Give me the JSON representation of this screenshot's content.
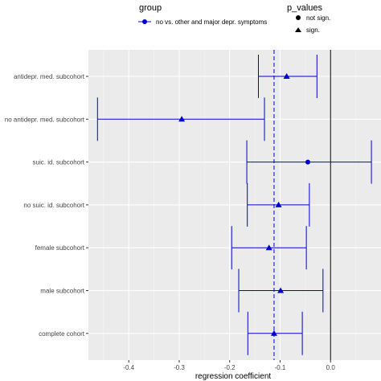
{
  "chart_data": {
    "type": "scatter",
    "xlabel": "regression coefficient",
    "ylabel": "",
    "xlim": [
      -0.48,
      0.1
    ],
    "x_ticks": [
      -0.4,
      -0.3,
      -0.2,
      -0.1,
      0.0
    ],
    "x_tick_labels": [
      "-0.4",
      "-0.3",
      "-0.2",
      "-0.1",
      "0.0"
    ],
    "grid": true,
    "reference_lines": {
      "zero": 0.0,
      "overall_estimate_dashed": -0.112
    },
    "categories": [
      "antidepr. med. subcohort",
      "no antidepr. med. subcohort",
      "suic. id. subcohort",
      "no suic. id. subcohort",
      "female subcohort",
      "male subcohort",
      "complete cohort"
    ],
    "series": [
      {
        "name": "no vs. other and major depr. symptoms",
        "color": "#0000cc",
        "points": [
          {
            "estimate": -0.087,
            "ci": [
              -0.143,
              -0.027
            ],
            "p_value": "sign."
          },
          {
            "estimate": -0.295,
            "ci": [
              -0.462,
              -0.131
            ],
            "p_value": "sign."
          },
          {
            "estimate": -0.045,
            "ci": [
              -0.166,
              0.081
            ],
            "p_value": "not sign."
          },
          {
            "estimate": -0.103,
            "ci": [
              -0.165,
              -0.042
            ],
            "p_value": "sign."
          },
          {
            "estimate": -0.122,
            "ci": [
              -0.196,
              -0.048
            ],
            "p_value": "sign."
          },
          {
            "estimate": -0.099,
            "ci": [
              -0.182,
              -0.015
            ],
            "p_value": "sign."
          },
          {
            "estimate": -0.112,
            "ci": [
              -0.164,
              -0.056
            ],
            "p_value": "sign."
          }
        ]
      }
    ],
    "legend": {
      "placement": "top",
      "group_title": "group",
      "group_items": [
        "no vs. other and major depr. symptoms"
      ],
      "pvalue_title": "p_values",
      "pvalue_items": [
        {
          "label": "not sign.",
          "shape": "circle"
        },
        {
          "label": "sign.",
          "shape": "triangle"
        }
      ]
    }
  }
}
